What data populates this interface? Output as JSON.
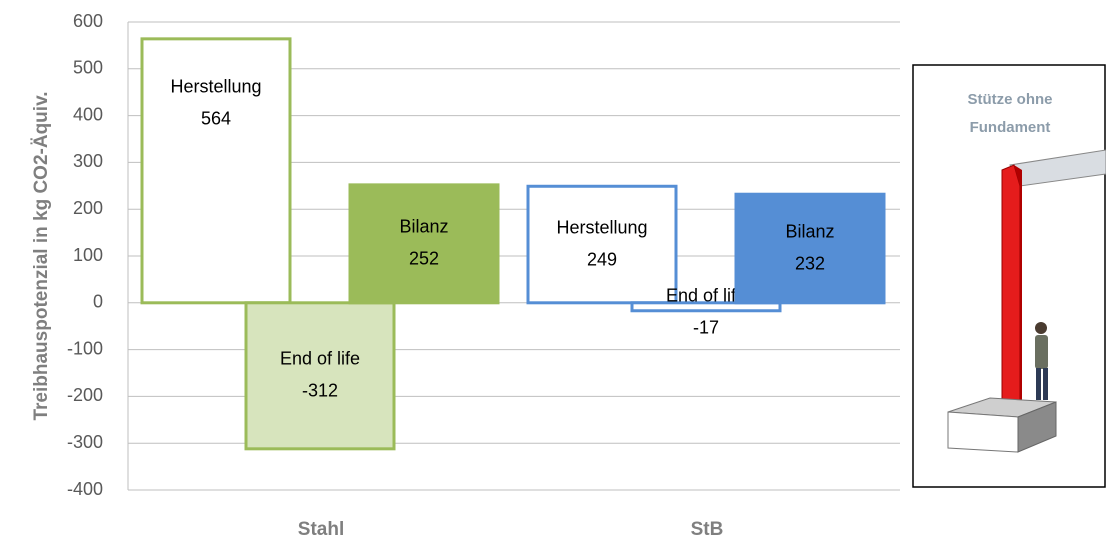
{
  "chart_data": {
    "type": "bar",
    "y_label": "Treibhauspotenzial in kg CO2-Äquiv.",
    "categories": [
      "Stahl",
      "StB"
    ],
    "series": [
      {
        "name": "Herstellung",
        "values": [
          564,
          249
        ],
        "fills": [
          "#ffffff",
          "#ffffff"
        ],
        "strokes": [
          "#9bbb59",
          "#558ed5"
        ]
      },
      {
        "name": "End of life",
        "values": [
          -312,
          -17
        ],
        "fills": [
          "#d7e4bd",
          "#ffffff"
        ],
        "strokes": [
          "#9bbb59",
          "#558ed5"
        ]
      },
      {
        "name": "Bilanz",
        "values": [
          252,
          232
        ],
        "fills": [
          "#9bbb59",
          "#558ed5"
        ],
        "strokes": [
          "#9bbb59",
          "#558ed5"
        ]
      }
    ],
    "ylim": [
      -400,
      600
    ],
    "yticks": [
      -400,
      -300,
      -200,
      -100,
      0,
      100,
      200,
      300,
      400,
      500,
      600
    ],
    "grid": true
  },
  "inset_title": [
    "Stütze ohne",
    "Fundament"
  ]
}
